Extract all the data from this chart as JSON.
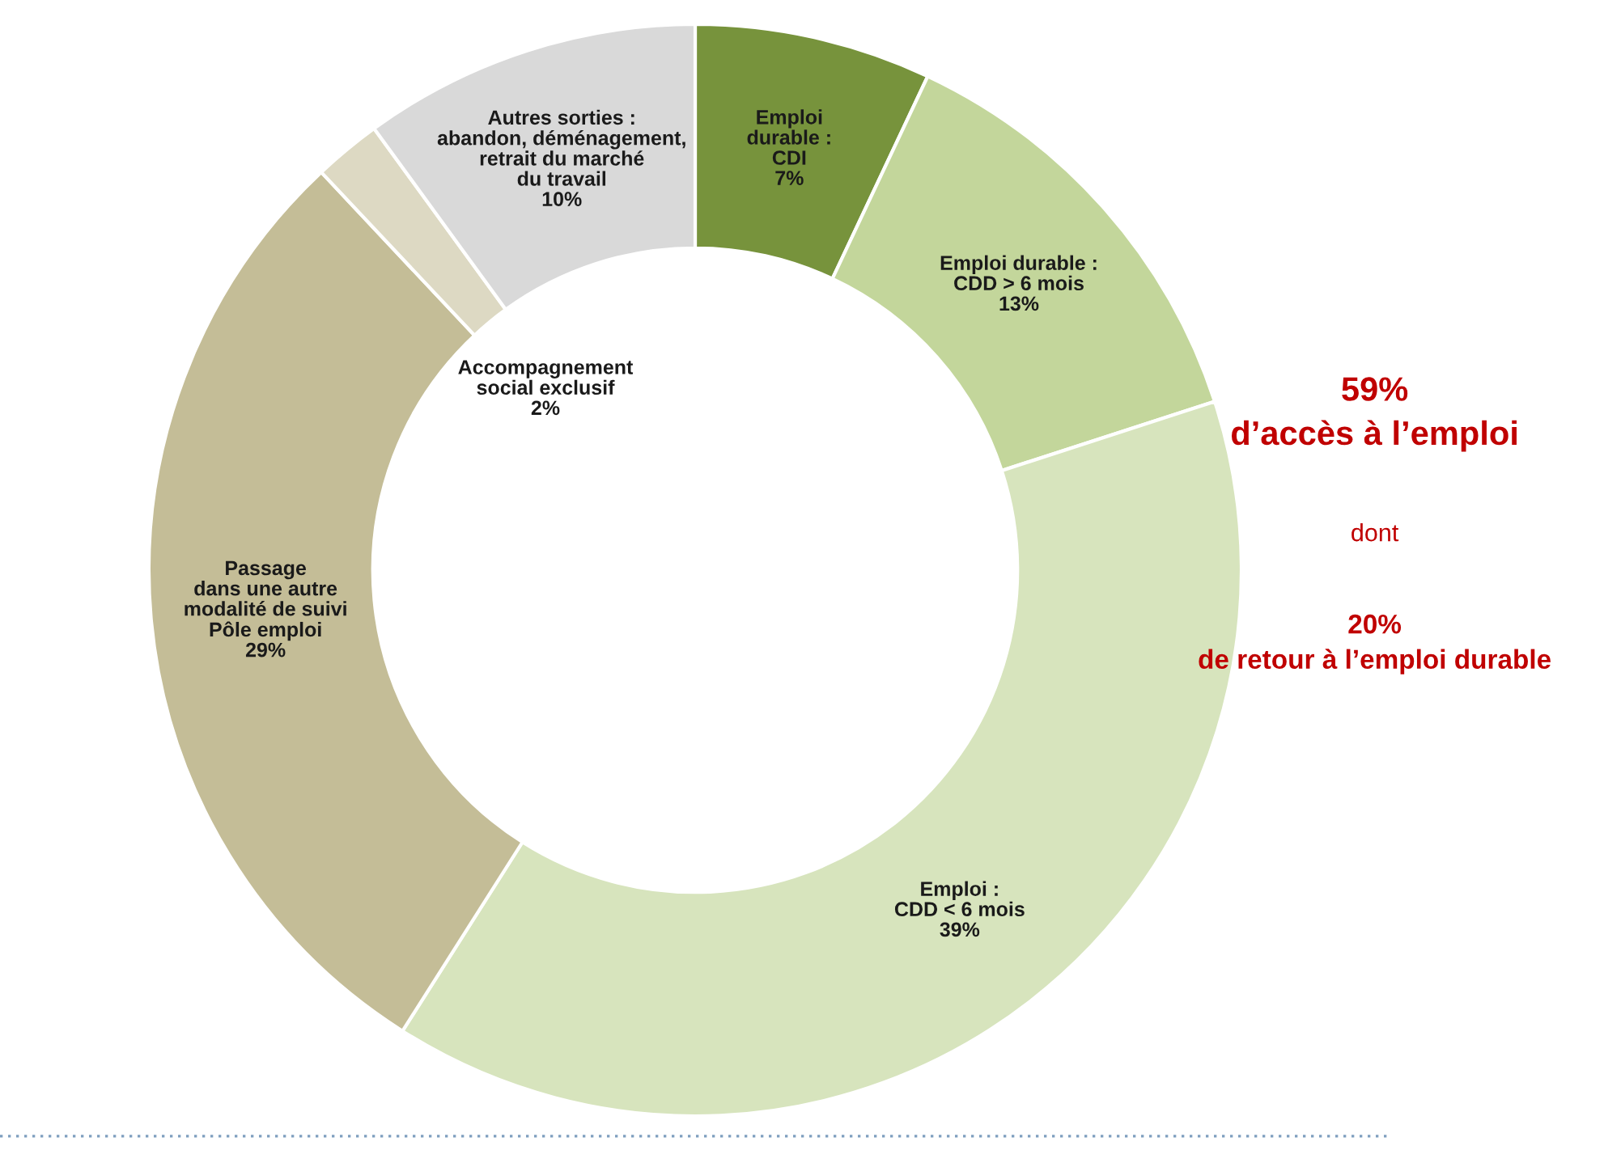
{
  "chart_data": {
    "type": "donut",
    "categories": [
      "Emploi\ndurable :\nCDI",
      "Emploi durable :\nCDD > 6 mois",
      "Emploi :\nCDD < 6 mois",
      "Passage\ndans une autre\nmodalité de suivi\nPôle emploi",
      "Accompagnement\nsocial exclusif",
      "Autres sorties :\nabandon, déménagement,\nretrait du marché\ndu travail"
    ],
    "values": [
      7,
      13,
      39,
      29,
      2,
      10
    ],
    "colors": [
      "#77933c",
      "#c3d69b",
      "#d7e4bd",
      "#c4bd97",
      "#ddd9c3",
      "#d9d9d9"
    ],
    "value_labels": [
      "7%",
      "13%",
      "39%",
      "29%",
      "2%",
      "10%"
    ],
    "annotations": [
      "59%\nd’accès à l’emploi",
      "dont",
      "20%\nde retour à l’emploi durable"
    ]
  }
}
